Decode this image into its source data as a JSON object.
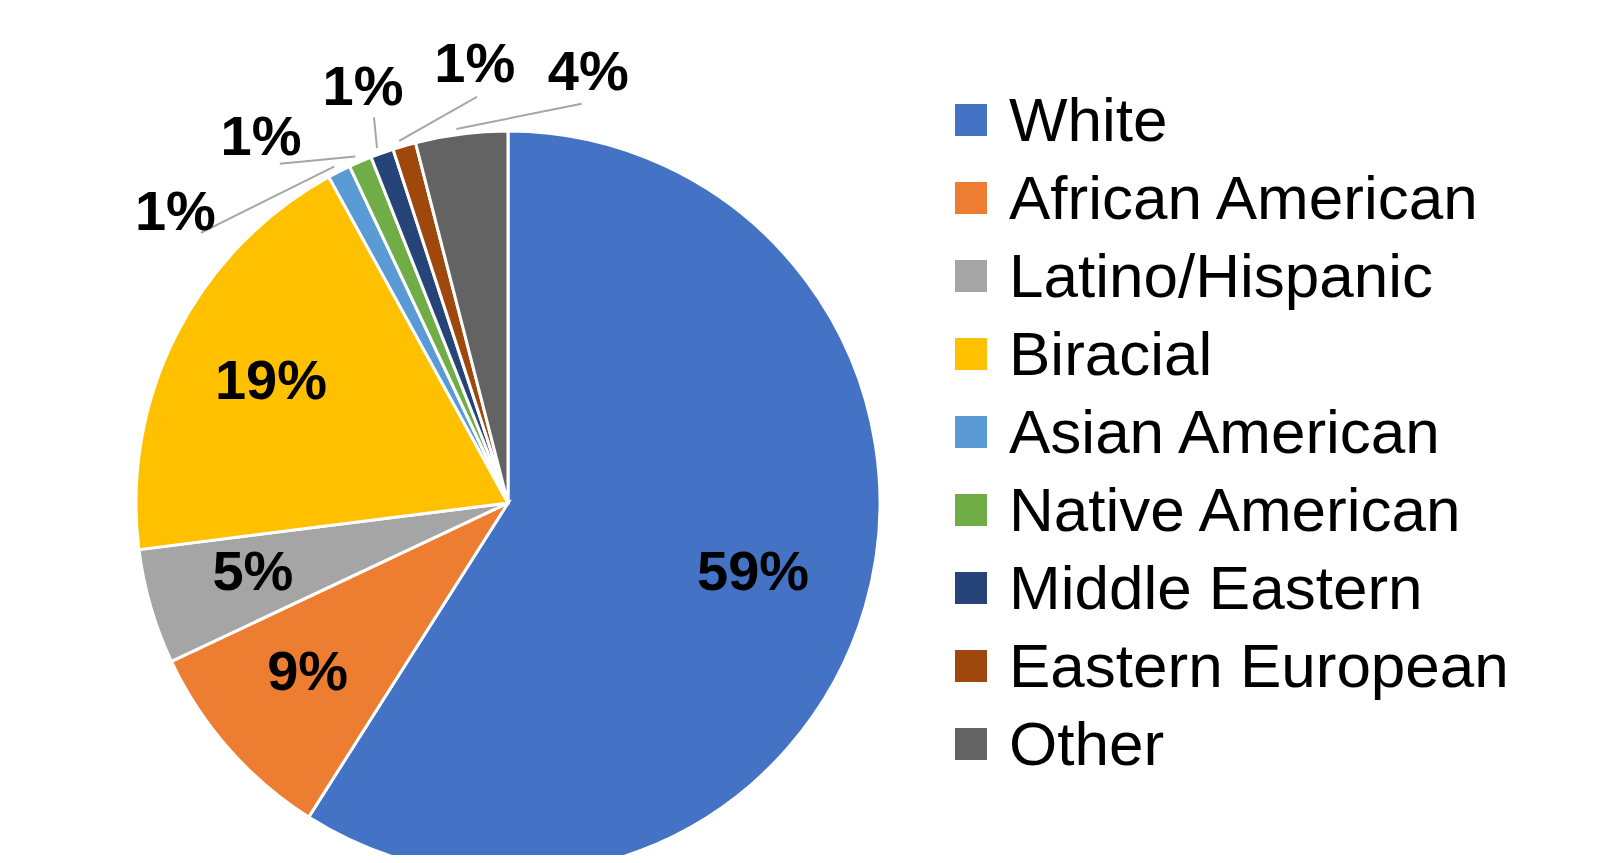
{
  "chart_data": {
    "type": "pie",
    "categories": [
      "White",
      "African American",
      "Latino/Hispanic",
      "Biracial",
      "Asian American",
      "Native American",
      "Middle Eastern",
      "Eastern European",
      "Other"
    ],
    "values": [
      59,
      9,
      5,
      19,
      1,
      1,
      1,
      1,
      4
    ],
    "value_labels": [
      "59%",
      "9%",
      "5%",
      "19%",
      "1%",
      "1%",
      "1%",
      "1%",
      "4%"
    ],
    "colors": [
      "#4472c4",
      "#ed7d31",
      "#a5a5a5",
      "#ffc000",
      "#5b9bd5",
      "#70ad47",
      "#264478",
      "#9e480e",
      "#636363"
    ],
    "legend": "right"
  }
}
